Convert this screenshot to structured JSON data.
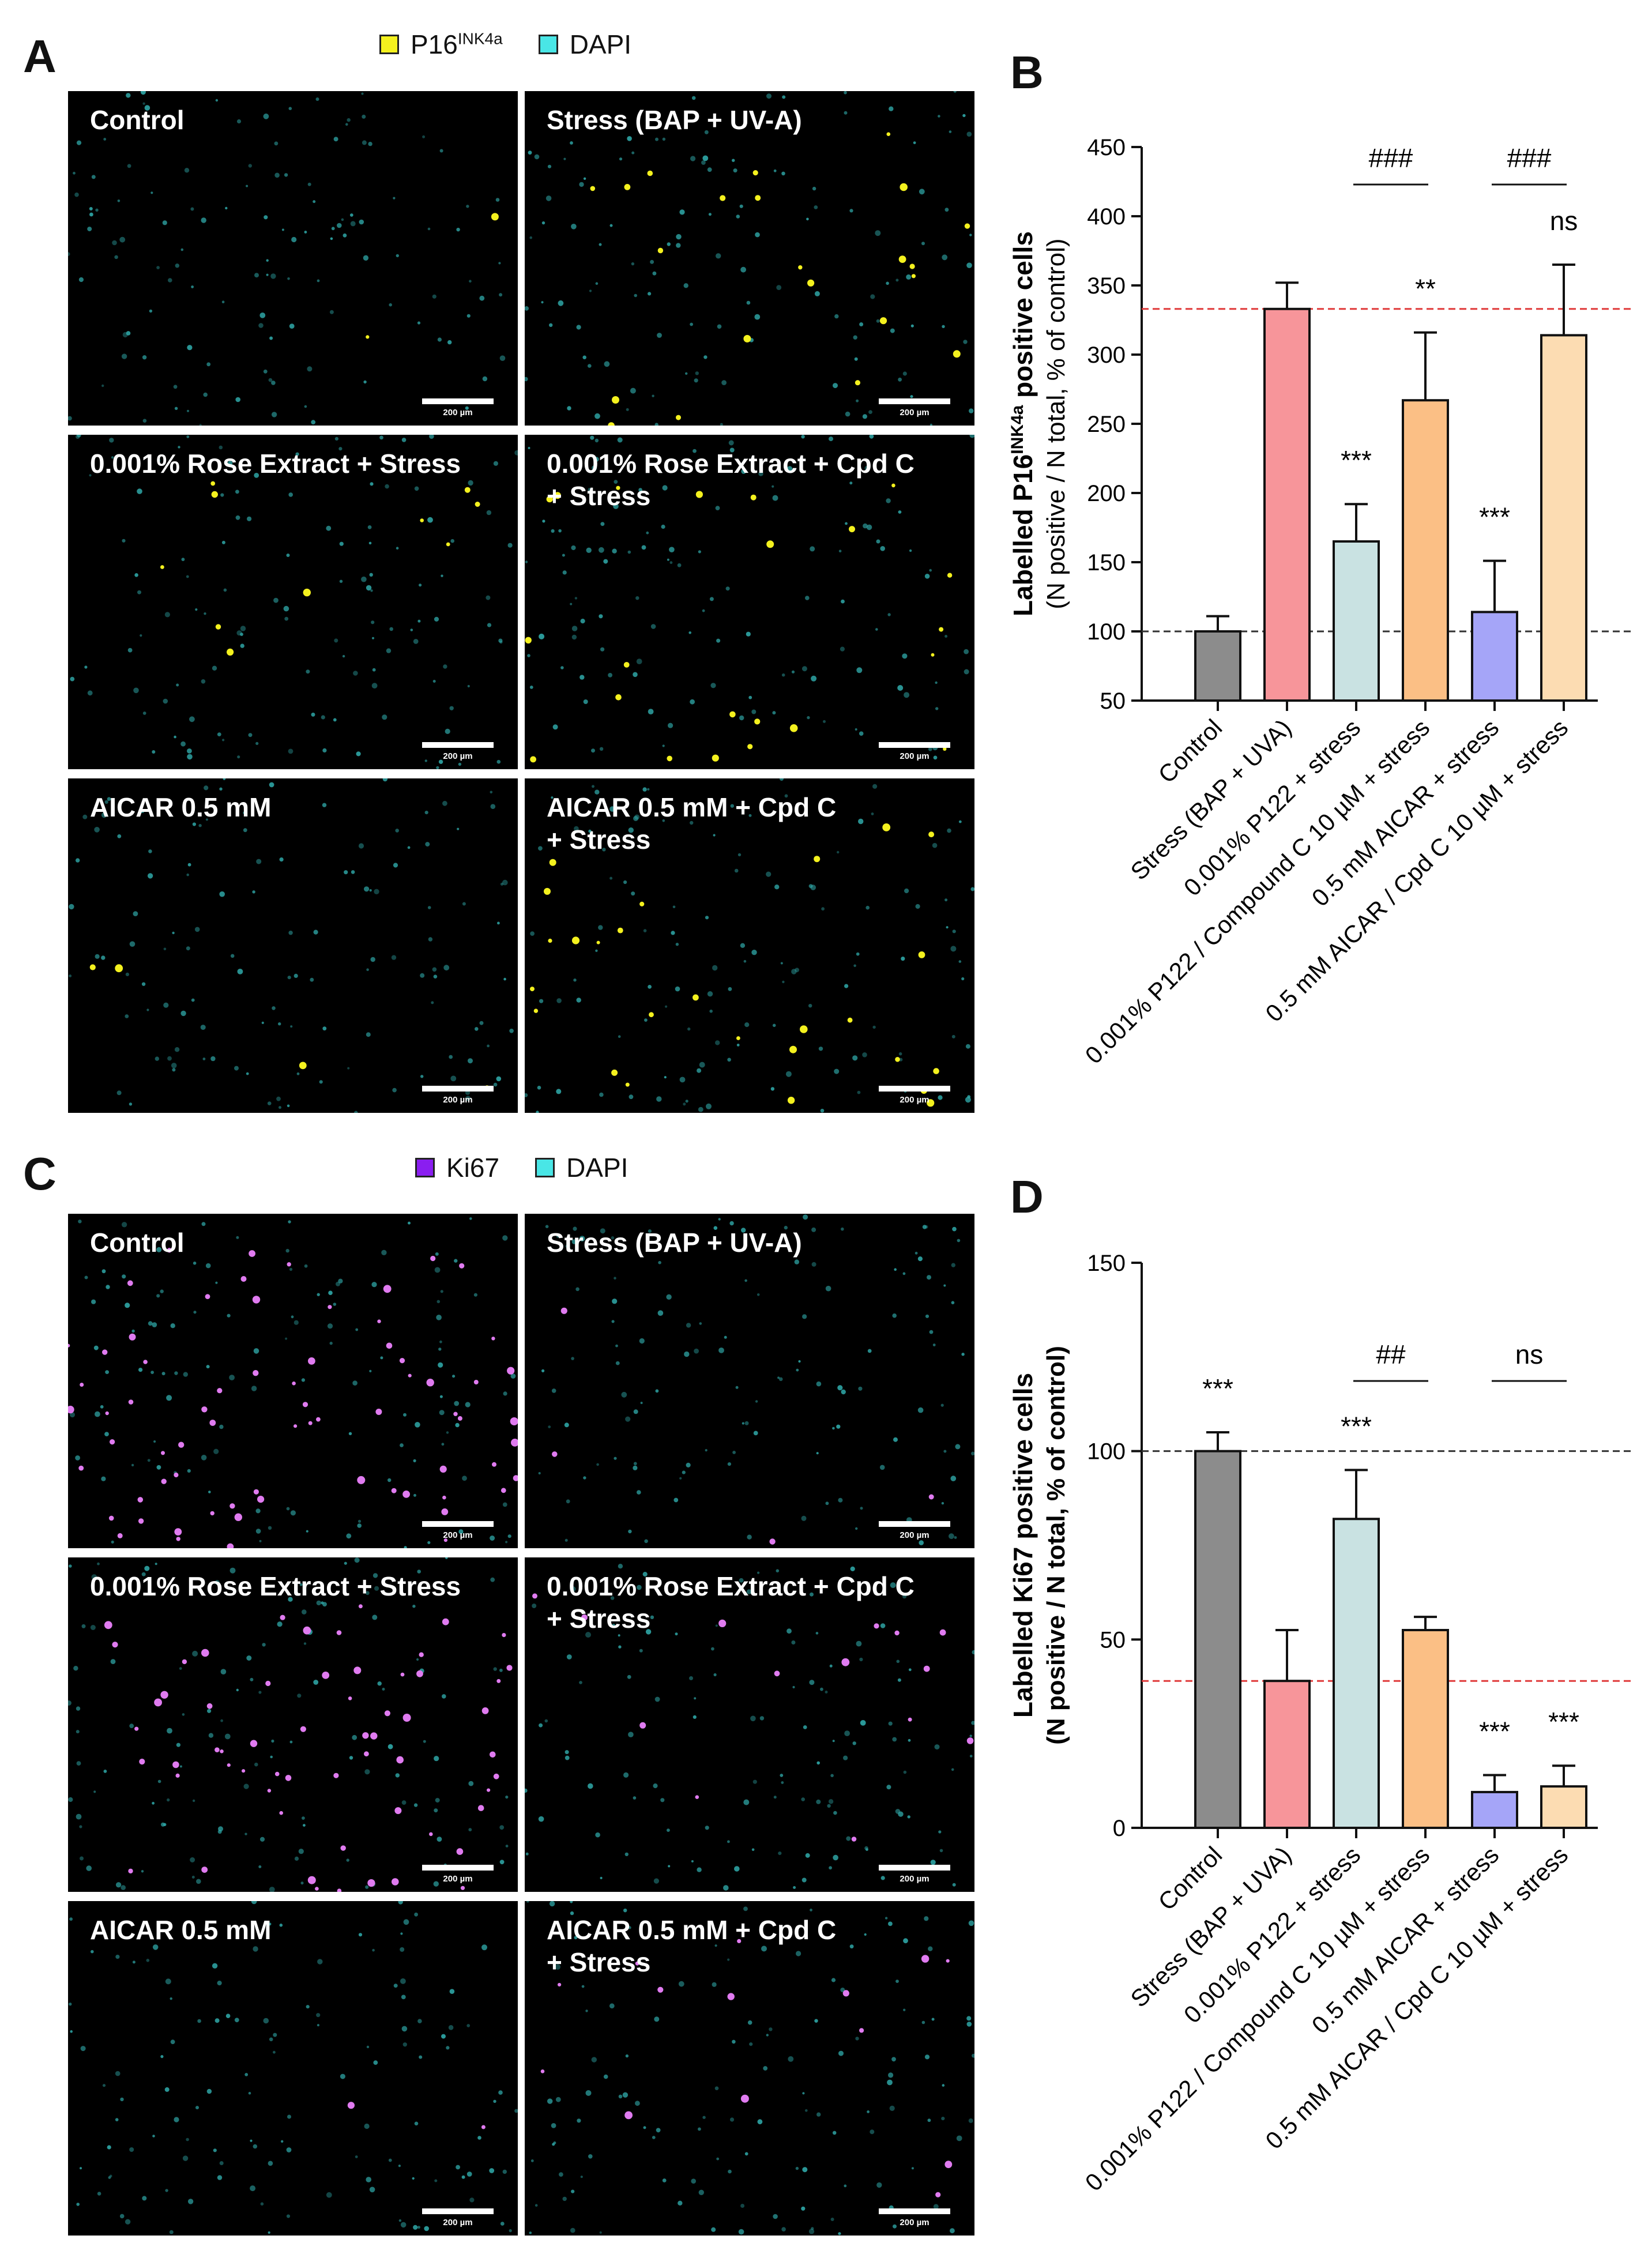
{
  "panels": {
    "A": {
      "letter": "A",
      "legend": [
        {
          "label": "P16",
          "sup": "INK4a",
          "color": "#f4f11e"
        },
        {
          "label": "DAPI",
          "color": "#49e6e6"
        }
      ],
      "images": [
        {
          "caption": "Control",
          "scale": "200 µm"
        },
        {
          "caption": "Stress (BAP + UV-A)",
          "scale": "200 µm"
        },
        {
          "caption": "0.001% Rose Extract + Stress",
          "scale": "200 µm"
        },
        {
          "caption": "0.001% Rose Extract + Cpd C\n+ Stress",
          "scale": "200 µm"
        },
        {
          "caption": "AICAR 0.5 mM",
          "scale": "200 µm"
        },
        {
          "caption": "AICAR 0.5 mM + Cpd C\n+ Stress",
          "scale": "200 µm"
        }
      ]
    },
    "C": {
      "letter": "C",
      "legend": [
        {
          "label": "Ki67",
          "color": "#8a1ef0"
        },
        {
          "label": "DAPI",
          "color": "#49e6e6"
        }
      ],
      "images": [
        {
          "caption": "Control",
          "scale": "200 µm"
        },
        {
          "caption": "Stress (BAP + UV-A)",
          "scale": "200 µm"
        },
        {
          "caption": "0.001% Rose Extract + Stress",
          "scale": "200 µm"
        },
        {
          "caption": "0.001% Rose Extract + Cpd C\n+ Stress",
          "scale": "200 µm"
        },
        {
          "caption": "AICAR 0.5 mM",
          "scale": "200 µm"
        },
        {
          "caption": "AICAR 0.5 mM + Cpd C\n+ Stress",
          "scale": "200 µm"
        }
      ]
    }
  },
  "chart_data": [
    {
      "panel": "B",
      "type": "bar",
      "categories": [
        "Control",
        "Stress (BAP + UVA)",
        "0.001% P122 + stress",
        "0.001% P122 / Compound C 10 µM + stress",
        "0.5 mM AICAR + stress",
        "0.5 mM AICAR / Cpd C 10 µM + stress"
      ],
      "values": [
        100,
        333,
        165,
        267,
        114,
        314
      ],
      "errors": [
        11,
        19,
        27,
        49,
        37,
        51
      ],
      "colors": [
        "#8c8c8c",
        "#f7959a",
        "#c9e2e2",
        "#fbbf85",
        "#a5a5f8",
        "#fcdcb2"
      ],
      "ylabel_main": "Labelled P16",
      "ylabel_sup": "INK4a",
      "ylabel_tail": " positive cells",
      "ylabel_line2": "(N positive / N total, % of control)",
      "ylim": [
        50,
        450
      ],
      "yticks": [
        50,
        100,
        150,
        200,
        250,
        300,
        350,
        400,
        450
      ],
      "reference_lines": [
        {
          "value": 333,
          "color": "#e03a3a"
        },
        {
          "value": 100,
          "color": "#333333"
        }
      ],
      "significance": [
        "",
        "",
        "***",
        "**",
        "***",
        "ns"
      ],
      "comparisons": [
        {
          "from": 2,
          "to": 3,
          "label": "###"
        },
        {
          "from": 4,
          "to": 5,
          "label": "###"
        }
      ]
    },
    {
      "panel": "D",
      "type": "bar",
      "categories": [
        "Control",
        "Stress (BAP + UVA)",
        "0.001% P122 + stress",
        "0.001% P122 / Compound C 10 µM + stress",
        "0.5 mM AICAR + stress",
        "0.5 mM AICAR / Cpd C 10 µM + stress"
      ],
      "values": [
        100,
        39,
        82,
        52.5,
        9.5,
        11
      ],
      "errors": [
        5,
        13.5,
        13,
        3.5,
        4.5,
        5.5
      ],
      "colors": [
        "#8c8c8c",
        "#f7959a",
        "#c9e2e2",
        "#fbbf85",
        "#a5a5f8",
        "#fcdcb2"
      ],
      "ylabel_main": "Labelled Ki67 positive cells",
      "ylabel_line2": "(N positive / N total, % of control)",
      "ylim": [
        0,
        150
      ],
      "yticks": [
        0,
        50,
        100,
        150
      ],
      "reference_lines": [
        {
          "value": 100,
          "color": "#333333"
        },
        {
          "value": 39,
          "color": "#e03a3a"
        }
      ],
      "significance": [
        "***",
        "",
        "***",
        "",
        "***",
        "***"
      ],
      "comparisons": [
        {
          "from": 2,
          "to": 3,
          "label": "##"
        },
        {
          "from": 4,
          "to": 5,
          "label": "ns"
        }
      ]
    }
  ]
}
